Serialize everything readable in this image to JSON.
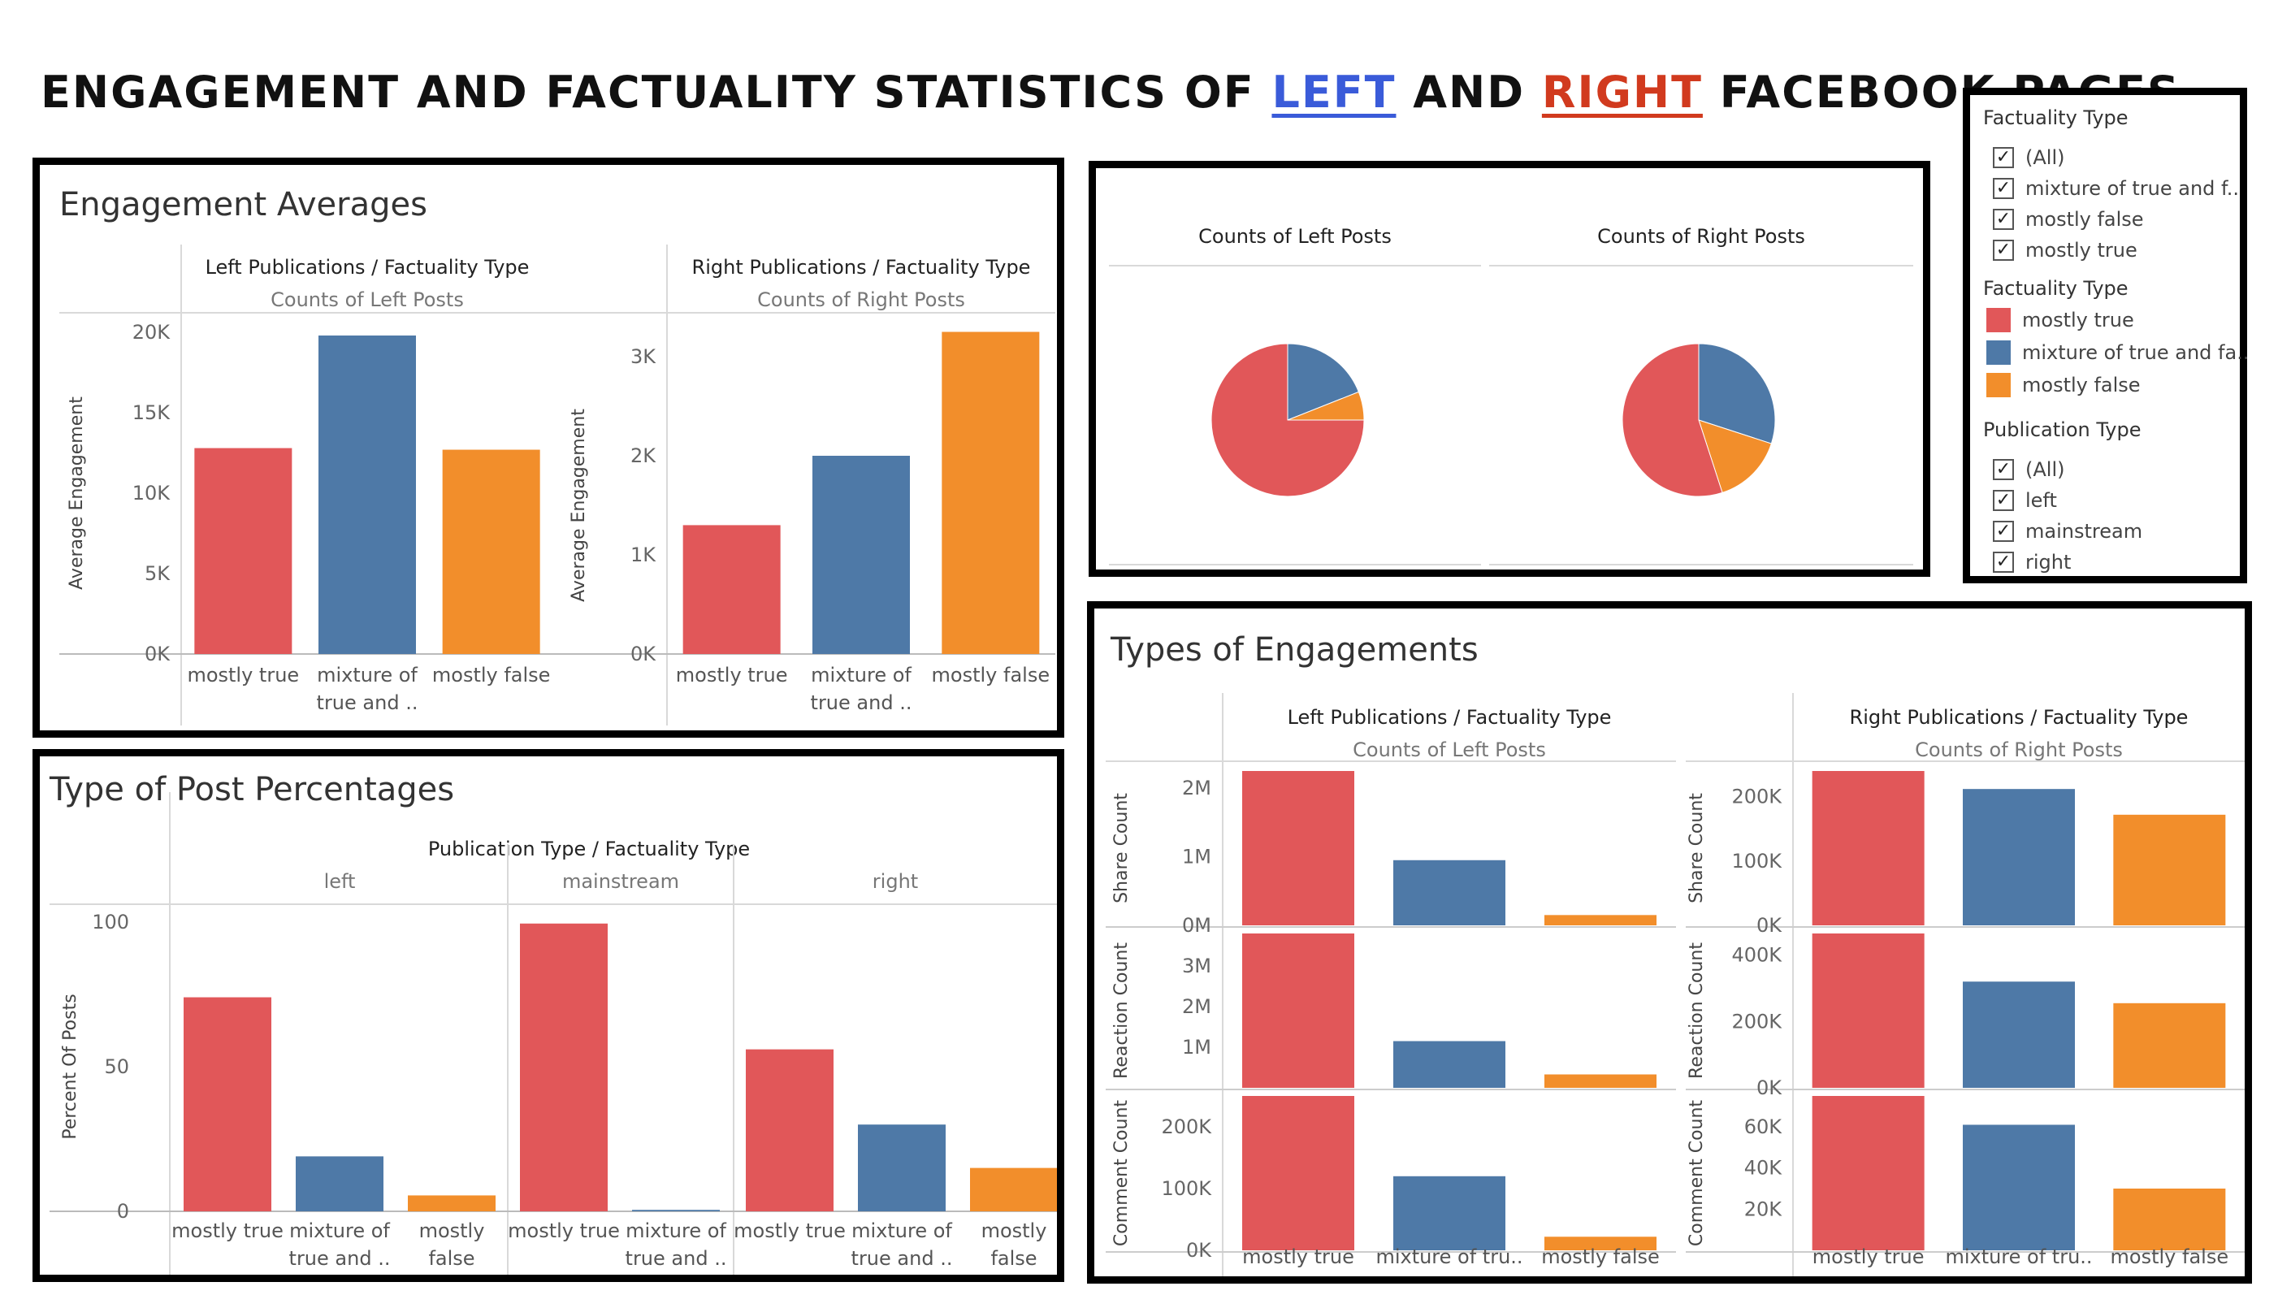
{
  "title": {
    "part1": "ENGAGEMENT AND FACTUALITY STATISTICS OF ",
    "left_word": "LEFT",
    "part2": " AND ",
    "right_word": "RIGHT",
    "part3": " FACEBOOK PAGES"
  },
  "colors": {
    "mostly_true": "#e15759",
    "mixture": "#4e79a7",
    "mostly_false": "#f28e2b",
    "left_word": "#3a5bd9",
    "right_word": "#d13a1e"
  },
  "legend": {
    "factuality_filter": {
      "header": "Factuality Type",
      "items": [
        "(All)",
        "mixture of true and f..",
        "mostly false",
        "mostly true"
      ]
    },
    "factuality_colors": {
      "header": "Factuality Type",
      "items": [
        "mostly true",
        "mixture of true and fa..",
        "mostly false"
      ]
    },
    "publication_filter": {
      "header": "Publication Type",
      "items": [
        "(All)",
        "left",
        "mainstream",
        "right"
      ]
    }
  },
  "panels": {
    "engagement_averages": {
      "title": "Engagement Averages"
    },
    "pies": {},
    "post_percentages": {
      "title": "Type of Post Percentages"
    },
    "types_of_engagements": {
      "title": "Types of Engagements"
    }
  },
  "chart_data": [
    {
      "type": "bar",
      "id": "eng-left",
      "header": "Left Publications / Factuality Type",
      "subheader": "Counts of Left Posts",
      "ylabel": "Average Engagement",
      "categories": [
        "mostly true",
        "mixture of true and ..",
        "mostly false"
      ],
      "category_lines": [
        [
          "mostly true"
        ],
        [
          "mixture of",
          "true and .."
        ],
        [
          "mostly false"
        ]
      ],
      "values": [
        12800,
        19800,
        12700
      ],
      "ylim": [
        0,
        20000
      ],
      "yticks": [
        0,
        5000,
        10000,
        15000,
        20000
      ],
      "yticklabels": [
        "0K",
        "5K",
        "10K",
        "15K",
        "20K"
      ]
    },
    {
      "type": "bar",
      "id": "eng-right",
      "header": "Right Publications / Factuality Type",
      "subheader": "Counts of Right Posts",
      "ylabel": "Average Engagement",
      "categories": [
        "mostly true",
        "mixture of true and ..",
        "mostly false"
      ],
      "category_lines": [
        [
          "mostly true"
        ],
        [
          "mixture of",
          "true and .."
        ],
        [
          "mostly false"
        ]
      ],
      "values": [
        1300,
        2000,
        3250
      ],
      "ylim": [
        0,
        3000
      ],
      "yticks": [
        0,
        1000,
        2000,
        3000
      ],
      "yticklabels": [
        "0K",
        "1K",
        "2K",
        "3K"
      ]
    },
    {
      "type": "pie",
      "id": "pie-left",
      "title": "Counts of Left Posts",
      "labels": [
        "mostly true",
        "mixture of true and false",
        "mostly false"
      ],
      "values": [
        75,
        19,
        6
      ]
    },
    {
      "type": "pie",
      "id": "pie-right",
      "title": "Counts of Right Posts",
      "labels": [
        "mostly true",
        "mixture of true and false",
        "mostly false"
      ],
      "values": [
        55,
        30,
        15
      ]
    },
    {
      "type": "bar",
      "id": "post-pct",
      "header": "Publication Type / Factuality Type",
      "groups": [
        "left",
        "mainstream",
        "right"
      ],
      "ylabel": "Percent Of Posts",
      "ylim": [
        0,
        100
      ],
      "yticks": [
        0,
        50,
        100
      ],
      "yticklabels": [
        "0",
        "50",
        "100"
      ],
      "group_categories": [
        [
          [
            "mostly true"
          ],
          [
            "mixture of",
            "true and .."
          ],
          [
            "mostly",
            "false"
          ]
        ],
        [
          [
            "mostly true"
          ],
          [
            "mixture of",
            "true and .."
          ]
        ],
        [
          [
            "mostly true"
          ],
          [
            "mixture of",
            "true and .."
          ],
          [
            "mostly",
            "false"
          ]
        ]
      ],
      "series": [
        {
          "name": "left",
          "values": [
            74,
            19,
            5.5
          ]
        },
        {
          "name": "mainstream",
          "values": [
            99.5,
            0.5
          ]
        },
        {
          "name": "right",
          "values": [
            56,
            30,
            15
          ]
        }
      ]
    },
    {
      "type": "bar",
      "id": "types-left",
      "header": "Left Publications / Factuality Type",
      "subheader": "Counts of Left Posts",
      "categories": [
        "mostly true",
        "mixture of tru..",
        "mostly false"
      ],
      "rows": [
        {
          "ylabel": "Share Count",
          "values": [
            2250000,
            950000,
            150000
          ],
          "ylim": [
            0,
            2250000
          ],
          "yticks": [
            0,
            1000000,
            2000000
          ],
          "yticklabels": [
            "0M",
            "1M",
            "2M"
          ]
        },
        {
          "ylabel": "Reaction Count",
          "values": [
            3800000,
            1150000,
            330000
          ],
          "ylim": [
            0,
            3800000
          ],
          "yticks": [
            1000000,
            2000000,
            3000000
          ],
          "yticklabels": [
            "1M",
            "2M",
            "3M"
          ]
        },
        {
          "ylabel": "Comment Count",
          "values": [
            250000,
            120000,
            22000
          ],
          "ylim": [
            0,
            250000
          ],
          "yticks": [
            0,
            100000,
            200000
          ],
          "yticklabels": [
            "0K",
            "100K",
            "200K"
          ]
        }
      ]
    },
    {
      "type": "bar",
      "id": "types-right",
      "header": "Right Publications / Factuality Type",
      "subheader": "Counts of Right Posts",
      "categories": [
        "mostly true",
        "mixture of tru..",
        "mostly false"
      ],
      "rows": [
        {
          "ylabel": "Share Count",
          "values": [
            240000,
            212000,
            172000
          ],
          "ylim": [
            0,
            240000
          ],
          "yticks": [
            0,
            100000,
            200000
          ],
          "yticklabels": [
            "0K",
            "100K",
            "200K"
          ]
        },
        {
          "ylabel": "Reaction Count",
          "values": [
            465000,
            320000,
            255000
          ],
          "ylim": [
            0,
            465000
          ],
          "yticks": [
            0,
            200000,
            400000
          ],
          "yticklabels": [
            "0K",
            "200K",
            "400K"
          ]
        },
        {
          "ylabel": "Comment Count",
          "values": [
            75000,
            61000,
            30000
          ],
          "ylim": [
            0,
            75000
          ],
          "yticks": [
            20000,
            40000,
            60000
          ],
          "yticklabels": [
            "20K",
            "40K",
            "60K"
          ]
        }
      ]
    }
  ]
}
